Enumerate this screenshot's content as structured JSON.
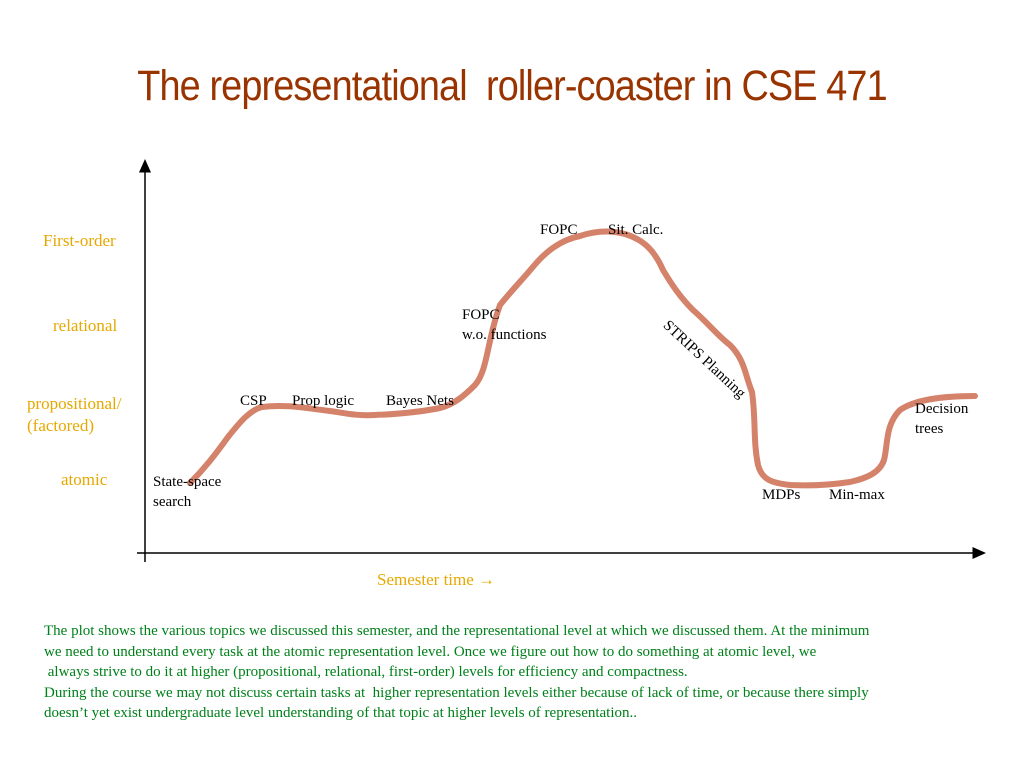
{
  "slide": {
    "title": "The representational  roller-coaster in CSE 471"
  },
  "levels": {
    "first_order": "First-order",
    "relational": "relational",
    "propositional_1": "propositional/",
    "propositional_2": "(factored)",
    "atomic": "atomic"
  },
  "axis": {
    "x_label": "Semester time →"
  },
  "topics": {
    "state_space_1": "State-space",
    "state_space_2": "search",
    "csp": "CSP",
    "prop_logic": "Prop logic",
    "bayes_nets": "Bayes Nets",
    "fopc_wo_1": "FOPC",
    "fopc_wo_2": "w.o. functions",
    "fopc": "FOPC",
    "sit_calc": "Sit. Calc.",
    "strips": "STRIPS Planning",
    "mdps": "MDPs",
    "min_max": "Min-max",
    "decision_1": "Decision",
    "decision_2": "trees"
  },
  "caption": {
    "line1": "The plot shows the various topics we discussed this semester, and the representational level at which we discussed them. At the minimum",
    "line2": "we need to understand every task at the atomic representation level. Once we figure out how to do something at atomic level, we",
    "line3": " always strive to do it at higher (propositional, relational, first-order) levels for efficiency and compactness.",
    "line4": "During the course we may not discuss certain tasks at  higher representation levels either because of lack of time, or because there simply",
    "line5": "doesn’t yet exist undergraduate level understanding of that topic at higher levels of representation.."
  },
  "colors": {
    "title": "#993300",
    "levels": "#e6a800",
    "curve": "#d4826a",
    "caption": "#00801a"
  }
}
